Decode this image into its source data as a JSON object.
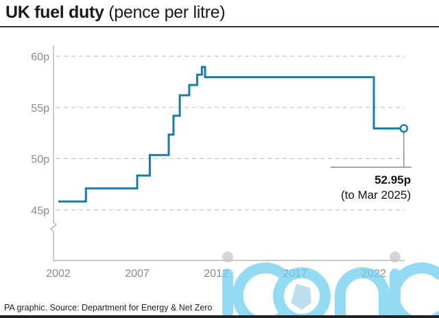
{
  "header": {
    "title_bold": "UK fuel duty",
    "title_rest": "(pence per litre)"
  },
  "footer": {
    "source": "PA graphic. Source: Department for Energy & Net Zero"
  },
  "watermark": {
    "text": "iconic",
    "color": "#6fcff0"
  },
  "chart_data": {
    "type": "line",
    "step": true,
    "title": "UK fuel duty (pence per litre)",
    "xlabel": "",
    "ylabel": "",
    "xlim": [
      2002,
      2025
    ],
    "ylim": [
      41,
      61
    ],
    "y_axis_break": true,
    "grid": true,
    "line_color": "#1a7aa8",
    "x_ticks": [
      2002,
      2007,
      2012,
      2017,
      2022
    ],
    "x_tick_labels": [
      "2002",
      "2007",
      "2012",
      "2017",
      "2022"
    ],
    "y_ticks": [
      45,
      50,
      55,
      60
    ],
    "y_tick_labels": [
      "45p",
      "50p",
      "55p",
      "60p"
    ],
    "series": [
      {
        "name": "Fuel duty",
        "points": [
          {
            "x": 2002.0,
            "y": 45.82
          },
          {
            "x": 2003.75,
            "y": 47.1
          },
          {
            "x": 2007.0,
            "y": 48.35
          },
          {
            "x": 2007.8,
            "y": 50.35
          },
          {
            "x": 2009.0,
            "y": 52.35
          },
          {
            "x": 2009.3,
            "y": 54.19
          },
          {
            "x": 2009.7,
            "y": 56.19
          },
          {
            "x": 2010.3,
            "y": 57.19
          },
          {
            "x": 2010.8,
            "y": 58.19
          },
          {
            "x": 2011.1,
            "y": 58.95
          },
          {
            "x": 2011.3,
            "y": 57.95
          },
          {
            "x": 2022.0,
            "y": 52.95
          },
          {
            "x": 2023.9,
            "y": 52.95
          }
        ]
      }
    ],
    "annotations": [
      {
        "label": "52.95p",
        "note": "(to Mar 2025)",
        "x": 2023.9,
        "y": 52.95
      }
    ]
  }
}
